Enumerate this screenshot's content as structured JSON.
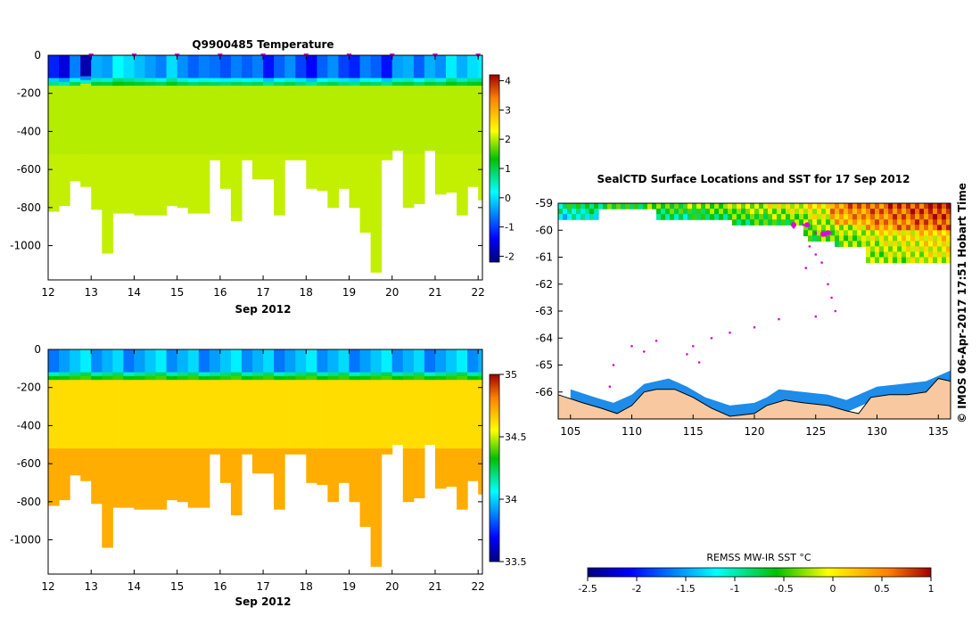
{
  "chart_data": [
    {
      "type": "heatmap",
      "title": "Q9900485  Temperature",
      "xlabel": "Sep 2012",
      "ylabel": "",
      "xlim": [
        12,
        22.1
      ],
      "ylim": [
        -1180,
        0
      ],
      "x_ticks": [
        "12",
        "13",
        "14",
        "15",
        "16",
        "17",
        "18",
        "19",
        "20",
        "21",
        "22"
      ],
      "y_ticks": [
        "0",
        "-200",
        "-400",
        "-600",
        "-800",
        "-1000"
      ],
      "y_tick_values": [
        0,
        -200,
        -400,
        -600,
        -800,
        -1000
      ],
      "profile_markers_day": [
        13,
        14,
        15,
        16,
        17,
        18,
        19,
        20,
        21,
        22
      ],
      "colorbar": {
        "min": -2.2,
        "max": 4.2,
        "ticks": [
          "-2",
          "-1",
          "0",
          "1",
          "2",
          "3",
          "4"
        ],
        "tick_values": [
          -2,
          -1,
          0,
          1,
          2,
          3,
          4
        ]
      },
      "profiles": {
        "start_day": 12.0,
        "step_days": 0.25,
        "max_depth": [
          820,
          790,
          660,
          690,
          810,
          1040,
          830,
          830,
          840,
          840,
          840,
          790,
          800,
          830,
          830,
          550,
          700,
          870,
          550,
          650,
          650,
          840,
          550,
          550,
          700,
          710,
          800,
          700,
          800,
          930,
          1140,
          550,
          500,
          800,
          780,
          500,
          730,
          720,
          840,
          690,
          760
        ],
        "surface_value": [
          -1.2,
          -1.6,
          -0.6,
          -1.9,
          -0.3,
          -0.4,
          0.2,
          0.0,
          -0.2,
          -0.4,
          -0.6,
          0.0,
          -0.5,
          -0.8,
          -0.6,
          -0.7,
          -0.9,
          -0.6,
          -0.8,
          -0.6,
          -1.3,
          -0.8,
          -0.5,
          -1.0,
          -1.4,
          -0.8,
          -0.5,
          -1.0,
          -1.2,
          -0.6,
          -0.8,
          -1.3,
          -0.4,
          -0.3,
          -0.8,
          -0.3,
          -0.5,
          0.1,
          -0.3,
          0.0,
          0.1
        ],
        "thermocline_depth": [
          150,
          150,
          150,
          140,
          150,
          150,
          150,
          150,
          150,
          150,
          150,
          150,
          150,
          150,
          150,
          150,
          150,
          150,
          150,
          150,
          150,
          150,
          150,
          150,
          150,
          150,
          150,
          150,
          150,
          150,
          150,
          150,
          150,
          150,
          150,
          150,
          150,
          150,
          150,
          150,
          150
        ],
        "deep_value": 2.0
      }
    },
    {
      "type": "heatmap",
      "title": "",
      "xlabel": "Sep 2012",
      "ylabel": "",
      "xlim": [
        12,
        22.1
      ],
      "ylim": [
        -1180,
        0
      ],
      "x_ticks": [
        "12",
        "13",
        "14",
        "15",
        "16",
        "17",
        "18",
        "19",
        "20",
        "21",
        "22"
      ],
      "y_ticks": [
        "0",
        "-200",
        "-400",
        "-600",
        "-800",
        "-1000"
      ],
      "y_tick_values": [
        0,
        -200,
        -400,
        -600,
        -800,
        -1000
      ],
      "colorbar": {
        "min": 33.5,
        "max": 35.0,
        "ticks": [
          "35",
          "34.5",
          "34",
          "33.5"
        ],
        "tick_values": [
          35,
          34.5,
          34,
          33.5
        ]
      },
      "profiles": {
        "surface_value": 33.95,
        "thermocline_depth": 150,
        "deep_value": 34.72
      }
    },
    {
      "type": "heatmap",
      "title": "SealCTD Surface Locations and SST for 17 Sep 2012",
      "xlabel": "",
      "ylabel": "",
      "xlim": [
        104,
        136
      ],
      "ylim": [
        -67,
        -59
      ],
      "x_ticks": [
        "105",
        "110",
        "115",
        "120",
        "125",
        "130",
        "135"
      ],
      "x_tick_values": [
        105,
        110,
        115,
        120,
        125,
        130,
        135
      ],
      "y_ticks": [
        "-59",
        "-60",
        "-61",
        "-62",
        "-63",
        "-64",
        "-65",
        "-66"
      ],
      "y_tick_values": [
        -59,
        -60,
        -61,
        -62,
        -63,
        -64,
        -65,
        -66
      ],
      "track_points": [
        [
          123.2,
          -59.9
        ],
        [
          124.0,
          -59.8
        ],
        [
          125.0,
          -60.1
        ],
        [
          125.8,
          -60.2
        ],
        [
          126.2,
          -60.1
        ],
        [
          124.5,
          -60.6
        ],
        [
          125.0,
          -60.9
        ],
        [
          125.5,
          -61.2
        ],
        [
          124.2,
          -61.4
        ],
        [
          126.0,
          -62.0
        ],
        [
          126.3,
          -62.5
        ],
        [
          126.6,
          -63.0
        ],
        [
          125.0,
          -63.2
        ],
        [
          122.0,
          -63.3
        ],
        [
          120.0,
          -63.6
        ],
        [
          118.0,
          -63.8
        ],
        [
          116.5,
          -64.0
        ],
        [
          115.0,
          -64.3
        ],
        [
          114.5,
          -64.6
        ],
        [
          115.5,
          -64.9
        ],
        [
          112.0,
          -64.1
        ],
        [
          110.0,
          -64.3
        ],
        [
          108.5,
          -65.0
        ],
        [
          108.2,
          -65.8
        ],
        [
          111.0,
          -64.5
        ]
      ],
      "big_markers": [
        [
          123.2,
          -59.8
        ],
        [
          124.3,
          -59.8
        ],
        [
          125.6,
          -60.15
        ],
        [
          126.0,
          -60.1
        ]
      ]
    },
    {
      "type": "bar",
      "title": "REMSS MW-IR SST °C",
      "colorbar_horizontal": true,
      "min": -2.5,
      "max": 1.0,
      "ticks": [
        "-2.5",
        "-2",
        "-1.5",
        "-1",
        "-0.5",
        "0",
        "0.5",
        "1"
      ],
      "tick_values": [
        -2.5,
        -2,
        -1.5,
        -1,
        -0.5,
        0,
        0.5,
        1
      ]
    }
  ],
  "side_label": "© IMOS 06-Apr-2017 17:51 Hobart Time",
  "colors": {
    "land": "#f8c9a0",
    "marker": "#e000e0",
    "frame": "#000000"
  }
}
